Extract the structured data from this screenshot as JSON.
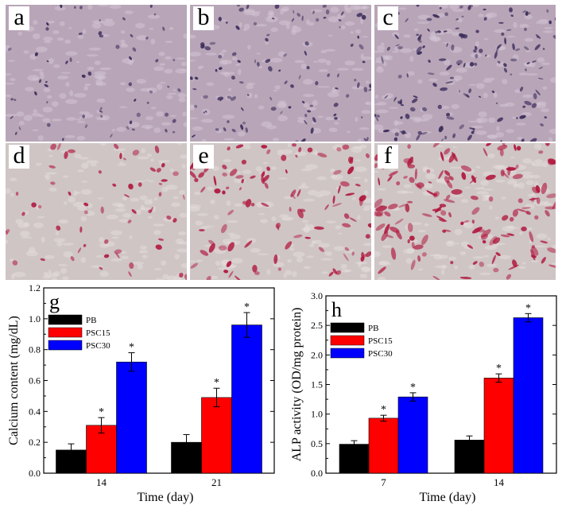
{
  "panels": [
    {
      "label": "a",
      "stain": "purple"
    },
    {
      "label": "b",
      "stain": "purple"
    },
    {
      "label": "c",
      "stain": "purple"
    },
    {
      "label": "d",
      "stain": "red"
    },
    {
      "label": "e",
      "stain": "red"
    },
    {
      "label": "f",
      "stain": "red"
    }
  ],
  "colors": {
    "PB": "#000000",
    "PSC15": "#ff0000",
    "PSC30": "#0000ff",
    "purple_bg": "#b8a6b8",
    "purple_spot": "#3a2a5a",
    "red_bg": "#cfc5c5",
    "red_spot": "#b0183e"
  },
  "chart_data": [
    {
      "type": "bar",
      "panel_label": "g",
      "categories": [
        "14",
        "21"
      ],
      "series": [
        {
          "name": "PB",
          "values": [
            0.15,
            0.2
          ],
          "errors": [
            0.04,
            0.05
          ],
          "sig": [
            false,
            false
          ]
        },
        {
          "name": "PSC15",
          "values": [
            0.31,
            0.49
          ],
          "errors": [
            0.05,
            0.06
          ],
          "sig": [
            true,
            true
          ]
        },
        {
          "name": "PSC30",
          "values": [
            0.72,
            0.96
          ],
          "errors": [
            0.06,
            0.08
          ],
          "sig": [
            true,
            true
          ]
        }
      ],
      "xlabel": "Time (day)",
      "ylabel": "Calcium content (mg/dL)",
      "ylim": [
        0,
        1.2
      ],
      "yticks": [
        "0.0",
        "0.2",
        "0.4",
        "0.6",
        "0.8",
        "1.0",
        "1.2"
      ],
      "sig_marker": "*",
      "legend": "top-left"
    },
    {
      "type": "bar",
      "panel_label": "h",
      "categories": [
        "7",
        "14"
      ],
      "series": [
        {
          "name": "PB",
          "values": [
            0.49,
            0.56
          ],
          "errors": [
            0.06,
            0.07
          ],
          "sig": [
            false,
            false
          ]
        },
        {
          "name": "PSC15",
          "values": [
            0.93,
            1.61
          ],
          "errors": [
            0.05,
            0.07
          ],
          "sig": [
            true,
            true
          ]
        },
        {
          "name": "PSC30",
          "values": [
            1.29,
            2.63
          ],
          "errors": [
            0.07,
            0.07
          ],
          "sig": [
            true,
            true
          ]
        }
      ],
      "xlabel": "Time (day)",
      "ylabel": "ALP activity (OD/mg protein)",
      "ylim": [
        0,
        3.0
      ],
      "yticks": [
        "0.0",
        "0.5",
        "1.0",
        "1.5",
        "2.0",
        "2.5",
        "3.0"
      ],
      "sig_marker": "*",
      "legend": "top-left"
    }
  ]
}
